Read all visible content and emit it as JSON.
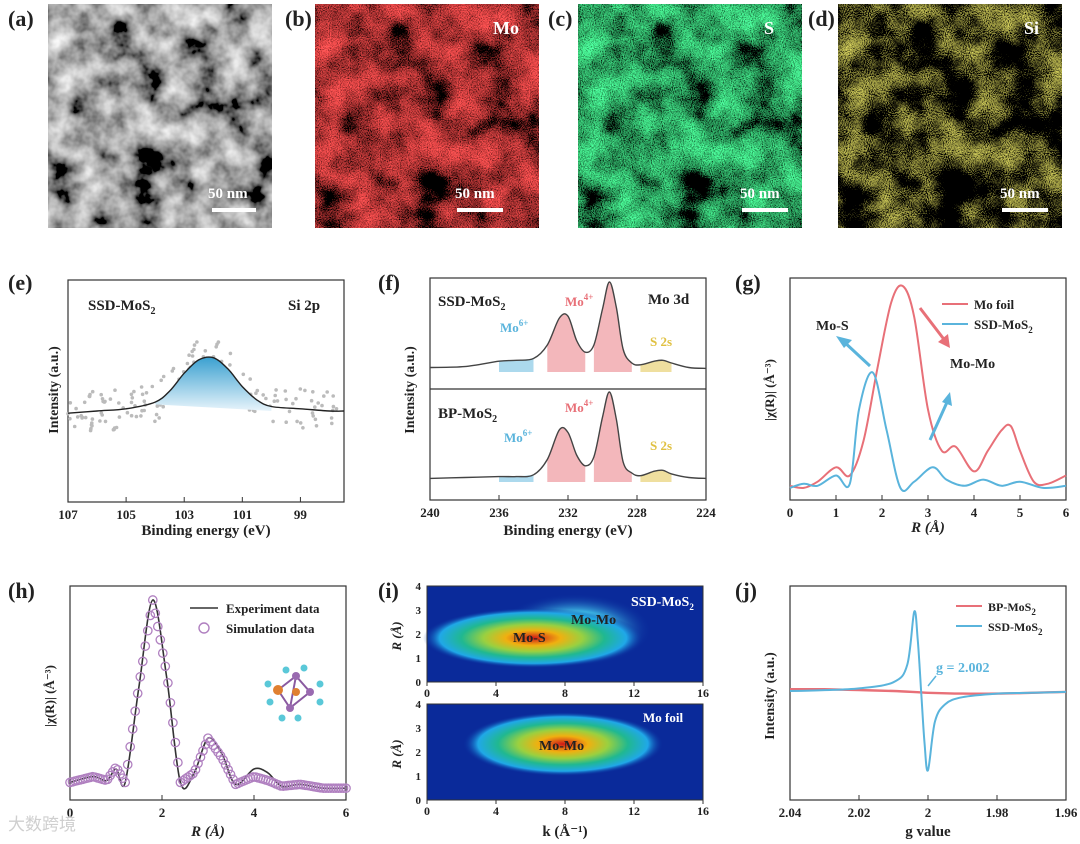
{
  "figure_labels": {
    "a": "(a)",
    "b": "(b)",
    "c": "(c)",
    "d": "(d)",
    "e": "(e)",
    "f": "(f)",
    "g": "(g)",
    "h": "(h)",
    "i": "(i)",
    "j": "(j)"
  },
  "eds_maps": [
    {
      "label": "",
      "scale_bar": "50 nm",
      "color": "#d8d8d8"
    },
    {
      "label": "Mo",
      "scale_bar": "50 nm",
      "color": "#e01818"
    },
    {
      "label": "S",
      "scale_bar": "50 nm",
      "color": "#12c040"
    },
    {
      "label": "Si",
      "scale_bar": "50 nm",
      "color": "#d8d020"
    }
  ],
  "watermark": "大数跨境",
  "chart_data": [
    {
      "panel": "e",
      "type": "line",
      "title_left": "SSD-MoS",
      "title_left_sub": "2",
      "title_right": "Si 2p",
      "xlabel": "Binding energy (eV)",
      "ylabel": "Intensity (a.u.)",
      "xlim": [
        107,
        97.5
      ],
      "xticks": [
        107,
        105,
        103,
        101,
        99
      ],
      "series": [
        {
          "name": "fit",
          "x": [
            107,
            106,
            105,
            104,
            103.5,
            103,
            102.5,
            102,
            101.5,
            101,
            100.5,
            100,
            99,
            98,
            97.5
          ],
          "values": [
            0.4,
            0.41,
            0.42,
            0.45,
            0.5,
            0.58,
            0.64,
            0.65,
            0.6,
            0.52,
            0.46,
            0.43,
            0.42,
            0.41,
            0.41
          ]
        }
      ],
      "peak_fill_color": "#5ab4dc"
    },
    {
      "panel": "f",
      "type": "line",
      "xlabel": "Binding energy (eV)",
      "ylabel": "Intensity (a.u.)",
      "xlim": [
        240,
        224
      ],
      "xticks": [
        240,
        236,
        232,
        228,
        224
      ],
      "sub": [
        {
          "name": "SSD-MoS",
          "name_sub": "2",
          "right": "Mo 3d",
          "mo6": "Mo",
          "mo6_sup": "6+",
          "mo4": "Mo",
          "mo4_sup": "4+",
          "s2s": "S 2s",
          "x": [
            240,
            238,
            236,
            235,
            234,
            233.2,
            232.5,
            232,
            231.5,
            231,
            230.5,
            230,
            229.6,
            229.2,
            228.8,
            228.3,
            227.8,
            227,
            226.5,
            226,
            225,
            224
          ],
          "values": [
            0.05,
            0.06,
            0.12,
            0.13,
            0.15,
            0.3,
            0.6,
            0.62,
            0.35,
            0.22,
            0.3,
            0.7,
            1.0,
            0.72,
            0.25,
            0.1,
            0.08,
            0.12,
            0.13,
            0.1,
            0.05,
            0.04
          ]
        },
        {
          "name": "BP-MoS",
          "name_sub": "2",
          "mo6": "Mo",
          "mo6_sup": "6+",
          "mo4": "Mo",
          "mo4_sup": "4+",
          "s2s": "S 2s",
          "x": [
            240,
            238,
            236,
            235,
            234,
            233.2,
            232.5,
            232,
            231.5,
            231,
            230.5,
            230,
            229.6,
            229.2,
            228.8,
            228.3,
            227.8,
            227,
            226.5,
            226,
            225,
            224
          ],
          "values": [
            0.04,
            0.05,
            0.06,
            0.06,
            0.08,
            0.25,
            0.58,
            0.55,
            0.3,
            0.18,
            0.28,
            0.72,
            1.0,
            0.7,
            0.22,
            0.1,
            0.07,
            0.12,
            0.13,
            0.09,
            0.05,
            0.04
          ]
        }
      ]
    },
    {
      "panel": "g",
      "type": "line",
      "xlabel": "R (Å)",
      "ylabel": "|χ(R)| (Å⁻³)",
      "xlim": [
        0,
        6
      ],
      "xticks": [
        0,
        1,
        2,
        3,
        4,
        5,
        6
      ],
      "annotations": [
        "Mo-S",
        "Mo-Mo"
      ],
      "series": [
        {
          "name": "Mo foil",
          "color": "#e87078",
          "x": [
            0,
            0.3,
            0.6,
            1,
            1.3,
            1.6,
            1.9,
            2.2,
            2.45,
            2.7,
            3,
            3.3,
            3.6,
            4,
            4.3,
            4.6,
            4.8,
            5,
            5.3,
            5.6,
            6
          ],
          "values": [
            0.03,
            0.02,
            0.05,
            0.12,
            0.08,
            0.25,
            0.6,
            0.92,
            1.0,
            0.85,
            0.4,
            0.2,
            0.22,
            0.1,
            0.2,
            0.3,
            0.32,
            0.2,
            0.05,
            0.04,
            0.08
          ]
        },
        {
          "name": "SSD-MoS",
          "name_sub": "2",
          "color": "#5ab4dc",
          "x": [
            0,
            0.3,
            0.6,
            1,
            1.3,
            1.5,
            1.8,
            2.1,
            2.4,
            2.7,
            3.1,
            3.4,
            3.8,
            4.2,
            4.6,
            5,
            5.5,
            6
          ],
          "values": [
            0.02,
            0.04,
            0.03,
            0.08,
            0.04,
            0.4,
            0.58,
            0.3,
            0.02,
            0.05,
            0.12,
            0.06,
            0.03,
            0.06,
            0.03,
            0.05,
            0.02,
            0.03
          ]
        }
      ]
    },
    {
      "panel": "h",
      "type": "line",
      "xlabel": "R (Å)",
      "ylabel": "|χ(R)| (Å⁻³)",
      "xlim": [
        0,
        6
      ],
      "xticks": [
        0,
        2,
        4,
        6
      ],
      "series": [
        {
          "name": "Experiment data",
          "color": "#333333",
          "x": [
            0,
            0.5,
            0.8,
            1,
            1.2,
            1.5,
            1.8,
            2.1,
            2.4,
            2.7,
            3,
            3.3,
            3.6,
            4,
            4.3,
            4.6,
            5,
            5.5,
            6
          ],
          "values": [
            0.05,
            0.08,
            0.06,
            0.12,
            0.05,
            0.55,
            1.0,
            0.6,
            0.05,
            0.1,
            0.28,
            0.2,
            0.04,
            0.12,
            0.1,
            0.03,
            0.04,
            0.02,
            0.02
          ]
        },
        {
          "name": "Simulation data",
          "color": "#b080c0",
          "x": [
            0,
            0.5,
            0.8,
            1,
            1.2,
            1.5,
            1.8,
            2.1,
            2.4,
            2.7,
            3,
            3.3,
            3.6,
            4,
            4.3,
            4.6,
            5,
            5.5,
            6
          ],
          "values": [
            0.05,
            0.08,
            0.06,
            0.13,
            0.05,
            0.56,
            1.0,
            0.62,
            0.05,
            0.1,
            0.28,
            0.18,
            0.04,
            0.08,
            0.06,
            0.03,
            0.04,
            0.02,
            0.02
          ]
        }
      ]
    },
    {
      "panel": "i",
      "type": "heatmap",
      "xlabel": "k (Å⁻¹)",
      "ylabel": "R (Å)",
      "xlim": [
        0,
        16
      ],
      "xticks": [
        0,
        4,
        8,
        12,
        16
      ],
      "ylim": [
        0,
        4
      ],
      "yticks": [
        0,
        1,
        2,
        3,
        4
      ],
      "sub": [
        {
          "name": "SSD-MoS",
          "name_sub": "2",
          "labels": [
            "Mo-S",
            "Mo-Mo"
          ]
        },
        {
          "name": "Mo foil",
          "labels": [
            "Mo-Mo"
          ]
        }
      ]
    },
    {
      "panel": "j",
      "type": "line",
      "xlabel": "g value",
      "ylabel": "Intensity (a.u.)",
      "xlim": [
        2.04,
        1.96
      ],
      "xticks": [
        2.04,
        2.02,
        2.0,
        1.98,
        1.96
      ],
      "annotation": "g = 2.002",
      "series": [
        {
          "name": "BP-MoS",
          "name_sub": "2",
          "color": "#e87078",
          "x": [
            2.04,
            2.03,
            2.02,
            2.01,
            2.0,
            1.99,
            1.98,
            1.97,
            1.96
          ],
          "values": [
            0.02,
            0.02,
            0.01,
            0.0,
            -0.02,
            -0.03,
            -0.03,
            -0.02,
            -0.01
          ]
        },
        {
          "name": "SSD-MoS",
          "name_sub": "2",
          "color": "#5ab4dc",
          "x": [
            2.04,
            2.03,
            2.02,
            2.01,
            2.006,
            2.004,
            2.003,
            2.002,
            2.001,
            2.0,
            1.998,
            1.995,
            1.99,
            1.98,
            1.97,
            1.96
          ],
          "values": [
            0.0,
            0.01,
            0.03,
            0.1,
            0.3,
            0.9,
            0.6,
            0.0,
            -0.6,
            -0.9,
            -0.35,
            -0.15,
            -0.07,
            -0.03,
            -0.02,
            -0.01
          ]
        }
      ]
    }
  ]
}
